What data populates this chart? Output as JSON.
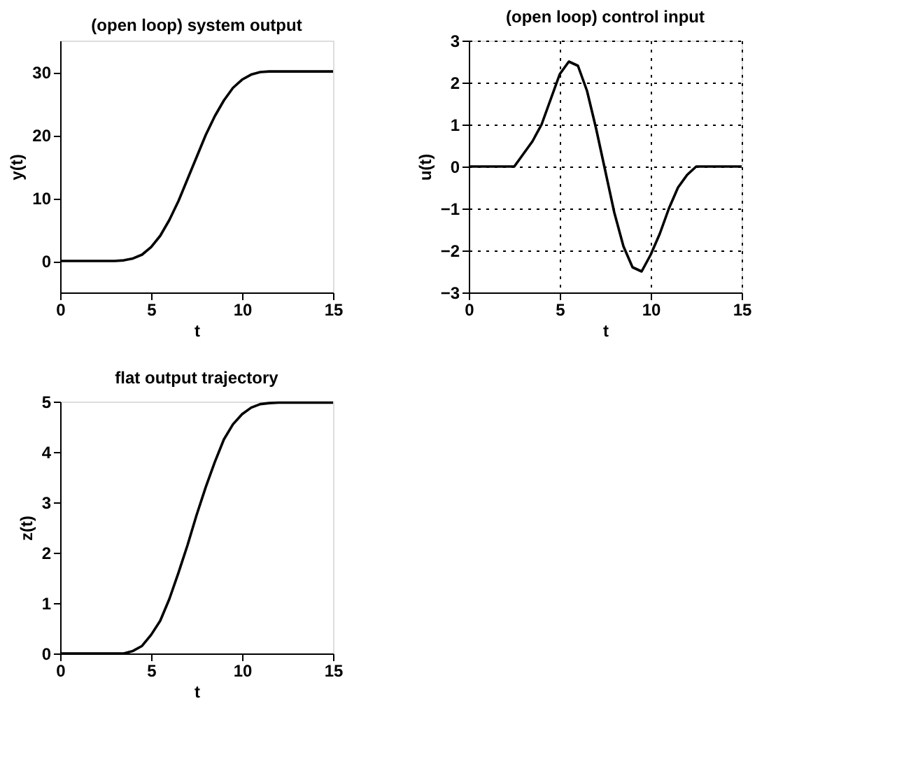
{
  "chart_data": [
    {
      "type": "line",
      "title": "(open loop) system output",
      "xlabel": "t",
      "ylabel": "y(t)",
      "xlim": [
        0,
        15
      ],
      "xticks": [
        0,
        5,
        10,
        15
      ],
      "ylim": [
        -5,
        35
      ],
      "yticks": [
        0,
        10,
        20,
        30
      ],
      "grid": false,
      "x": [
        0,
        1,
        2,
        3,
        3.5,
        4,
        4.5,
        5,
        5.5,
        6,
        6.5,
        7,
        7.5,
        8,
        8.5,
        9,
        9.5,
        10,
        10.5,
        11,
        11.5,
        12,
        13,
        14,
        15
      ],
      "series": [
        {
          "color": "#000000",
          "values": [
            0,
            0,
            0,
            0,
            0.1,
            0.4,
            1,
            2.2,
            4,
            6.5,
            9.5,
            13,
            16.5,
            20,
            23,
            25.5,
            27.5,
            28.8,
            29.6,
            30,
            30.1,
            30.1,
            30.1,
            30.1,
            30.1
          ]
        }
      ]
    },
    {
      "type": "line",
      "title": "(open loop) control input",
      "xlabel": "t",
      "ylabel": "u(t)",
      "xlim": [
        0,
        15
      ],
      "xticks": [
        0,
        5,
        10,
        15
      ],
      "ylim": [
        -3,
        3
      ],
      "yticks": [
        -3,
        -2,
        -1,
        0,
        1,
        2,
        3
      ],
      "grid": true,
      "x": [
        0,
        1,
        2,
        2.5,
        3,
        3.5,
        4,
        4.5,
        5,
        5.5,
        6,
        6.5,
        7,
        7.5,
        8,
        8.5,
        9,
        9.5,
        10,
        10.5,
        11,
        11.5,
        12,
        12.5,
        13,
        14,
        15
      ],
      "series": [
        {
          "color": "#000000",
          "values": [
            0,
            0,
            0,
            0,
            0.3,
            0.6,
            1.0,
            1.6,
            2.2,
            2.5,
            2.4,
            1.8,
            0.9,
            -0.1,
            -1.1,
            -1.9,
            -2.4,
            -2.5,
            -2.1,
            -1.6,
            -1.0,
            -0.5,
            -0.2,
            0,
            0,
            0,
            0
          ]
        }
      ]
    },
    {
      "type": "line",
      "title": "flat output trajectory",
      "xlabel": "t",
      "ylabel": "z(t)",
      "xlim": [
        0,
        15
      ],
      "xticks": [
        0,
        5,
        10,
        15
      ],
      "ylim": [
        0,
        5
      ],
      "yticks": [
        0,
        1,
        2,
        3,
        4,
        5
      ],
      "grid": false,
      "x": [
        0,
        1,
        2,
        3,
        3.5,
        4,
        4.5,
        5,
        5.5,
        6,
        6.5,
        7,
        7.5,
        8,
        8.5,
        9,
        9.5,
        10,
        10.5,
        11,
        11.5,
        12,
        13,
        14,
        15
      ],
      "series": [
        {
          "color": "#000000",
          "values": [
            0,
            0,
            0,
            0,
            0,
            0.05,
            0.15,
            0.37,
            0.65,
            1.08,
            1.6,
            2.15,
            2.75,
            3.3,
            3.8,
            4.25,
            4.55,
            4.75,
            4.88,
            4.95,
            4.97,
            4.98,
            4.98,
            4.98,
            4.98
          ]
        }
      ]
    }
  ]
}
